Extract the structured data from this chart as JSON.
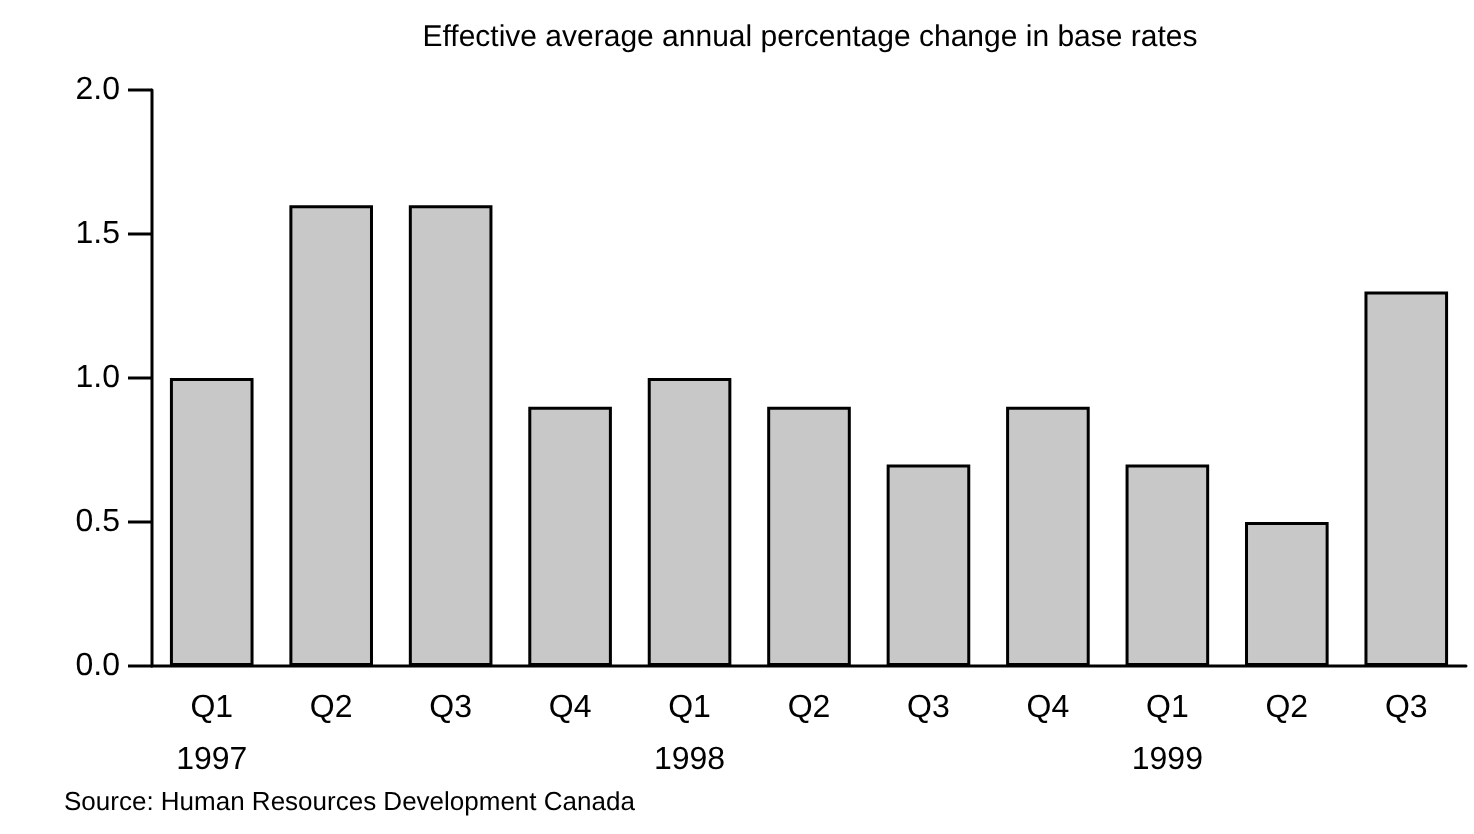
{
  "chart_data": {
    "type": "bar",
    "title": "Effective average annual percentage change in base rates",
    "categories": [
      "Q1\n1997",
      "Q2",
      "Q3",
      "Q4",
      "Q1\n1998",
      "Q2",
      "Q3",
      "Q4",
      "Q1\n1999",
      "Q2",
      "Q3"
    ],
    "values": [
      1.0,
      1.6,
      1.6,
      0.9,
      1.0,
      0.9,
      0.7,
      0.9,
      0.7,
      0.5,
      1.3
    ],
    "color": "#c8c8c8",
    "ylim": [
      0,
      2
    ],
    "yticks": [
      {
        "value": 0,
        "label": "0.0"
      },
      {
        "value": 0.5,
        "label": "0.5"
      },
      {
        "value": 1,
        "label": "1.0"
      },
      {
        "value": 1.5,
        "label": "1.5"
      },
      {
        "value": 2,
        "label": "2.0"
      }
    ],
    "grid": false,
    "annotations": [
      "Source: Human Resources Development Canada"
    ]
  }
}
